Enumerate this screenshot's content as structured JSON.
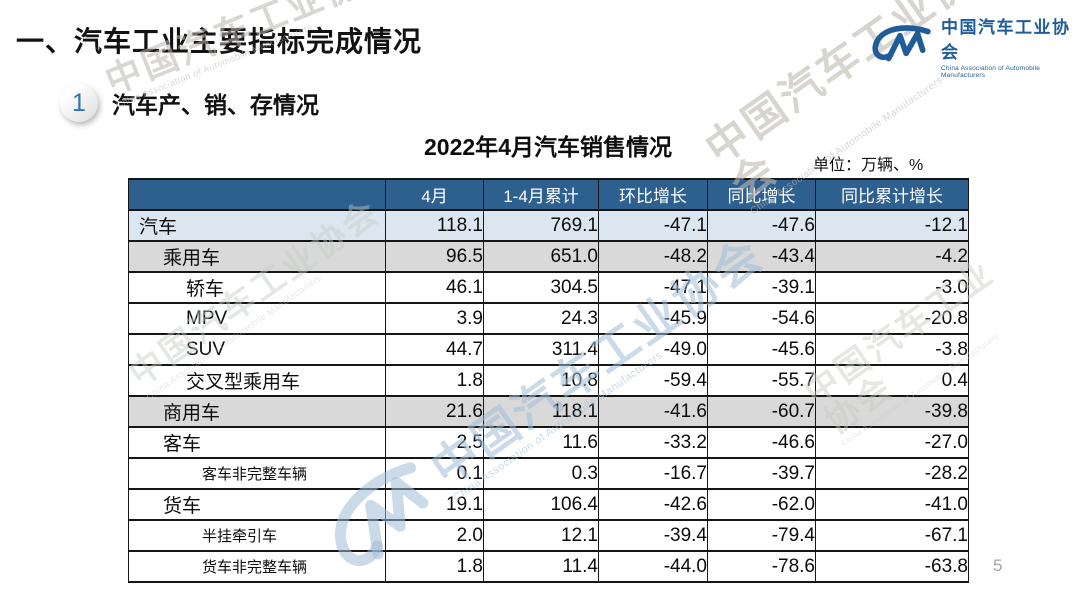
{
  "slide": {
    "title": "一、汽车工业主要指标完成情况",
    "page_number": "5"
  },
  "logo": {
    "name_cn": "中国汽车工业协会",
    "name_en": "China Association of Automobile Manufacturers",
    "brand_color": "#1f5c99"
  },
  "section": {
    "badge": "1",
    "title": "汽车产、销、存情况"
  },
  "table": {
    "title": "2022年4月汽车销售情况",
    "unit_note": "单位：万辆、%",
    "columns": [
      "",
      "4月",
      "1-4月累计",
      "环比增长",
      "同比增长",
      "同比累计增长"
    ],
    "rows": [
      {
        "label": "汽车",
        "indent": 0,
        "row_style": "blue",
        "small_label": false,
        "values": [
          "118.1",
          "769.1",
          "-47.1",
          "-47.6",
          "-12.1"
        ]
      },
      {
        "label": "乘用车",
        "indent": 1,
        "row_style": "gray",
        "small_label": false,
        "values": [
          "96.5",
          "651.0",
          "-48.2",
          "-43.4",
          "-4.2"
        ]
      },
      {
        "label": "轿车",
        "indent": 2,
        "row_style": "white",
        "small_label": false,
        "values": [
          "46.1",
          "304.5",
          "-47.1",
          "-39.1",
          "-3.0"
        ]
      },
      {
        "label": "MPV",
        "indent": 2,
        "row_style": "white",
        "small_label": false,
        "values": [
          "3.9",
          "24.3",
          "-45.9",
          "-54.6",
          "-20.8"
        ]
      },
      {
        "label": "SUV",
        "indent": 2,
        "row_style": "white",
        "small_label": false,
        "values": [
          "44.7",
          "311.4",
          "-49.0",
          "-45.6",
          "-3.8"
        ]
      },
      {
        "label": "交叉型乘用车",
        "indent": 2,
        "row_style": "white",
        "small_label": false,
        "values": [
          "1.8",
          "10.8",
          "-59.4",
          "-55.7",
          "0.4"
        ]
      },
      {
        "label": "商用车",
        "indent": 1,
        "row_style": "gray",
        "small_label": false,
        "values": [
          "21.6",
          "118.1",
          "-41.6",
          "-60.7",
          "-39.8"
        ]
      },
      {
        "label": "客车",
        "indent": 1,
        "row_style": "white",
        "small_label": false,
        "values": [
          "2.5",
          "11.6",
          "-33.2",
          "-46.6",
          "-27.0"
        ]
      },
      {
        "label": "客车非完整车辆",
        "indent": 3,
        "row_style": "white",
        "small_label": true,
        "values": [
          "0.1",
          "0.3",
          "-16.7",
          "-39.7",
          "-28.2"
        ]
      },
      {
        "label": "货车",
        "indent": 1,
        "row_style": "white",
        "small_label": false,
        "values": [
          "19.1",
          "106.4",
          "-42.6",
          "-62.0",
          "-41.0"
        ]
      },
      {
        "label": "半挂牵引车",
        "indent": 3,
        "row_style": "white",
        "small_label": true,
        "values": [
          "2.0",
          "12.1",
          "-39.4",
          "-79.4",
          "-67.1"
        ]
      },
      {
        "label": "货车非完整车辆",
        "indent": 3,
        "row_style": "white",
        "small_label": true,
        "values": [
          "1.8",
          "11.4",
          "-44.0",
          "-78.6",
          "-63.8"
        ]
      }
    ]
  },
  "watermark": {
    "text_cn": "中国汽车工业协会",
    "text_en": "China Association of Automobile Manufacturers"
  },
  "colors": {
    "table_header_bg": "#2d5f8f",
    "highlight_row_bg": "#dce6f1",
    "subtotal_row_bg": "#d9d9d9",
    "brand_blue": "#1f5c99",
    "badge_digit": "#2e74b5"
  }
}
